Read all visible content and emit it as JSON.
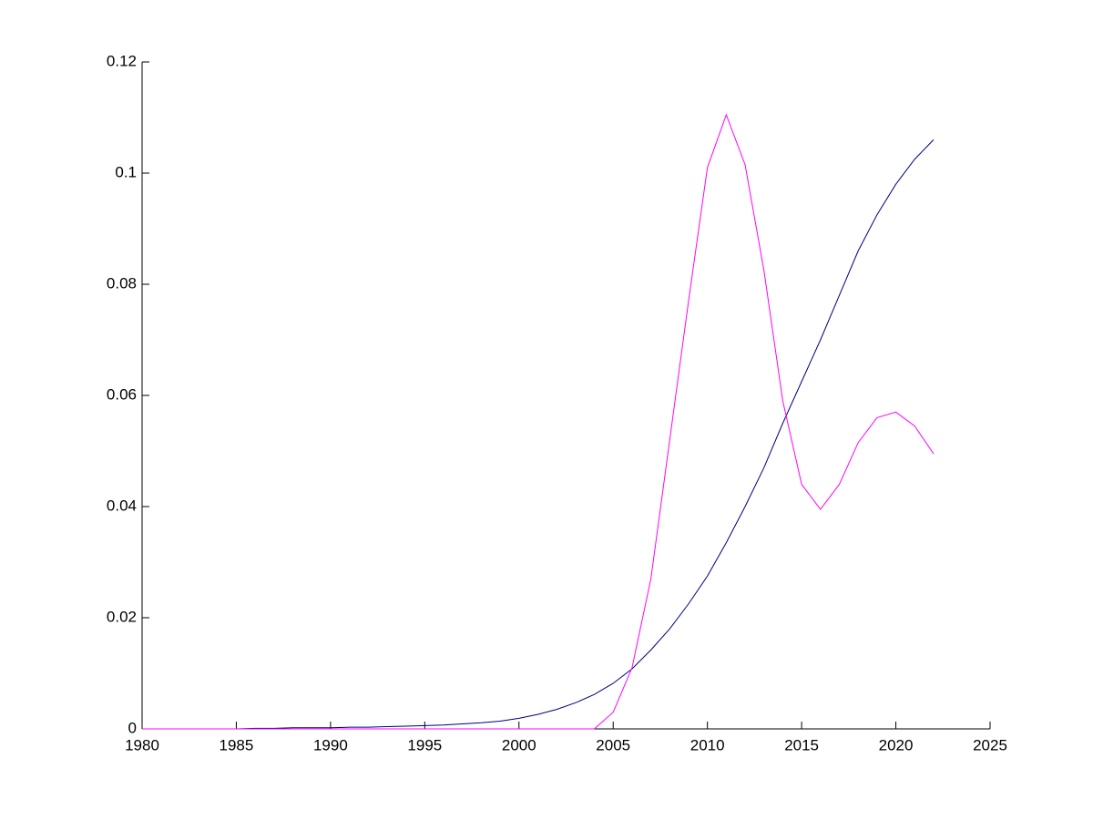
{
  "chart_data": {
    "type": "line",
    "x": [
      1980,
      1981,
      1982,
      1983,
      1984,
      1985,
      1986,
      1987,
      1988,
      1989,
      1990,
      1991,
      1992,
      1993,
      1994,
      1995,
      1996,
      1997,
      1998,
      1999,
      2000,
      2001,
      2002,
      2003,
      2004,
      2005,
      2006,
      2007,
      2008,
      2009,
      2010,
      2011,
      2012,
      2013,
      2014,
      2015,
      2016,
      2017,
      2018,
      2019,
      2020,
      2021,
      2022
    ],
    "series": [
      {
        "color": "#00007f",
        "values": [
          0,
          0,
          0,
          0,
          0,
          0,
          0.0001,
          0.0001,
          0.0002,
          0.0002,
          0.0002,
          0.0003,
          0.0003,
          0.0004,
          0.0005,
          0.0006,
          0.0007,
          0.0009,
          0.0011,
          0.0014,
          0.0019,
          0.0026,
          0.0035,
          0.0047,
          0.0062,
          0.0082,
          0.0108,
          0.0142,
          0.018,
          0.0225,
          0.0275,
          0.0335,
          0.04,
          0.047,
          0.055,
          0.0625,
          0.07,
          0.078,
          0.086,
          0.0925,
          0.098,
          0.1025,
          0.106
        ]
      },
      {
        "color": "#ff00ff",
        "values": [
          0,
          0,
          0,
          0,
          0,
          0,
          0,
          0,
          0,
          0,
          0,
          0,
          0,
          0,
          0,
          0,
          0,
          0,
          0,
          0,
          0,
          0,
          0,
          0,
          0,
          0.003,
          0.011,
          0.027,
          0.052,
          0.077,
          0.101,
          0.1105,
          0.1015,
          0.0825,
          0.059,
          0.044,
          0.0395,
          0.044,
          0.0515,
          0.056,
          0.057,
          0.0545,
          0.0495
        ]
      }
    ],
    "xlim": [
      1980,
      2025
    ],
    "xticks": [
      1980,
      1985,
      1990,
      1995,
      2000,
      2005,
      2010,
      2015,
      2020,
      2025
    ],
    "ylim": [
      0,
      0.12
    ],
    "yticks": [
      0,
      0.02,
      0.04,
      0.06,
      0.08,
      0.1,
      0.12
    ]
  }
}
